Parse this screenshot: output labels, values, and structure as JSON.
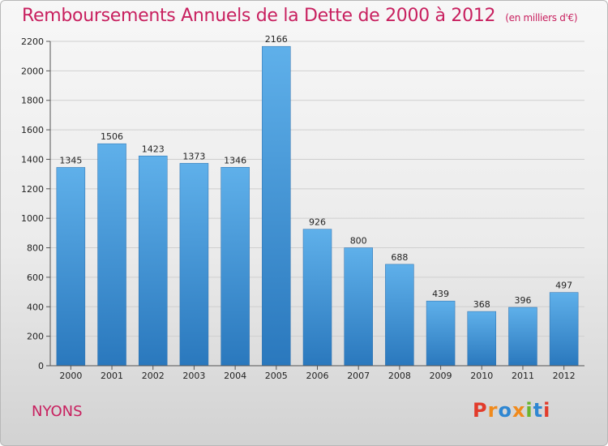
{
  "header": {
    "title": "Remboursements Annuels de la Dette de 2000 à 2012",
    "subtitle": "(en milliers d'€)"
  },
  "footer": {
    "city": "NYONS",
    "logo_text": "Proxiti"
  },
  "colors": {
    "title": "#c8205f",
    "bar_top": "#5fb0ea",
    "bar_bottom": "#2a78bd",
    "logo_letters": [
      "#e23b2b",
      "#f08a1c",
      "#2f87d2",
      "#f08a1c",
      "#6ab42d",
      "#2f87d2",
      "#e23b2b"
    ]
  },
  "chart_data": {
    "type": "bar",
    "title": "Remboursements Annuels de la Dette de 2000 à 2012",
    "categories": [
      "2000",
      "2001",
      "2002",
      "2003",
      "2004",
      "2005",
      "2006",
      "2007",
      "2008",
      "2009",
      "2010",
      "2011",
      "2012"
    ],
    "values": [
      1345,
      1506,
      1423,
      1373,
      1346,
      2166,
      926,
      800,
      688,
      439,
      368,
      396,
      497
    ],
    "ylim": [
      0,
      2200
    ],
    "yticks": [
      0,
      200,
      400,
      600,
      800,
      1000,
      1200,
      1400,
      1600,
      1800,
      2000,
      2200
    ],
    "grid": true,
    "xlabel": "",
    "ylabel": ""
  }
}
